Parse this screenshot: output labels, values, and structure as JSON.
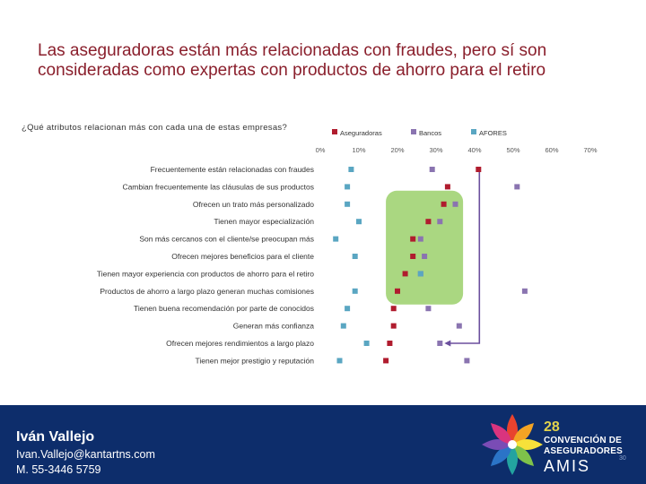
{
  "slide": {
    "title": "Las aseguradoras están más relacionadas con fraudes, pero sí son consideradas como expertas con productos de ahorro para el retiro",
    "question": "¿Qué atributos relacionan más con cada una de estas empresas?",
    "slide_number": "30"
  },
  "footer": {
    "name": "Iván Vallejo",
    "email": "Ivan.Vallejo@kantartns.com",
    "phone": "M. 55-3446 5759",
    "event_number": "28",
    "event_line1": "CONVENCIÓN DE",
    "event_line2": "ASEGURADORES",
    "event_line3": "AMIS",
    "logo_icon": "amis-star-logo-icon"
  },
  "colors": {
    "title": "#8a1f2c",
    "highlight": "#9bd06b",
    "footer": "#0d2d6b"
  },
  "chart_data": {
    "type": "scatter",
    "orientation": "horizontal",
    "title": "",
    "xlabel": "",
    "ylabel": "",
    "xlim": [
      0,
      70
    ],
    "x_ticks": [
      "0%",
      "10%",
      "20%",
      "30%",
      "40%",
      "50%",
      "60%",
      "70%"
    ],
    "legend_position": "top",
    "categories": [
      "Frecuentemente están relacionadas con fraudes",
      "Cambian frecuentemente las cláusulas de sus productos",
      "Ofrecen un trato más personalizado",
      "Tienen mayor especialización",
      "Son más cercanos con el cliente/se preocupan más",
      "Ofrecen mejores beneficios para el cliente",
      "Tienen mayor experiencia con productos de ahorro para el retiro",
      "Productos de ahorro a largo plazo generan muchas comisiones",
      "Tienen buena recomendación por parte de conocidos",
      "Generan más confianza",
      "Ofrecen mejores rendimientos a largo plazo",
      "Tienen mejor prestigio y reputación"
    ],
    "series": [
      {
        "name": "Aseguradoras",
        "color": "#b01c2e",
        "values": [
          41,
          33,
          32,
          28,
          24,
          24,
          22,
          20,
          19,
          19,
          18,
          17
        ]
      },
      {
        "name": "Bancos",
        "color": "#8a74b0",
        "values": [
          29,
          51,
          35,
          31,
          26,
          27,
          26,
          53,
          28,
          36,
          31,
          38
        ]
      },
      {
        "name": "AFORES",
        "color": "#5aa6c2",
        "values": [
          8,
          7,
          7,
          10,
          4,
          9,
          26,
          9,
          7,
          6,
          12,
          5
        ]
      }
    ],
    "highlight": {
      "categories": [
        "Ofrecen un trato más personalizado",
        "Productos de ahorro a largo plazo generan muchas comisiones"
      ],
      "x_range": [
        17,
        37
      ]
    },
    "annotations": [
      {
        "type": "bracket-arrow",
        "from_category": "Frecuentemente están relacionadas con fraudes",
        "to_category": "Ofrecen mejores rendimientos a largo plazo",
        "arrow_to_series": "Bancos"
      }
    ]
  }
}
